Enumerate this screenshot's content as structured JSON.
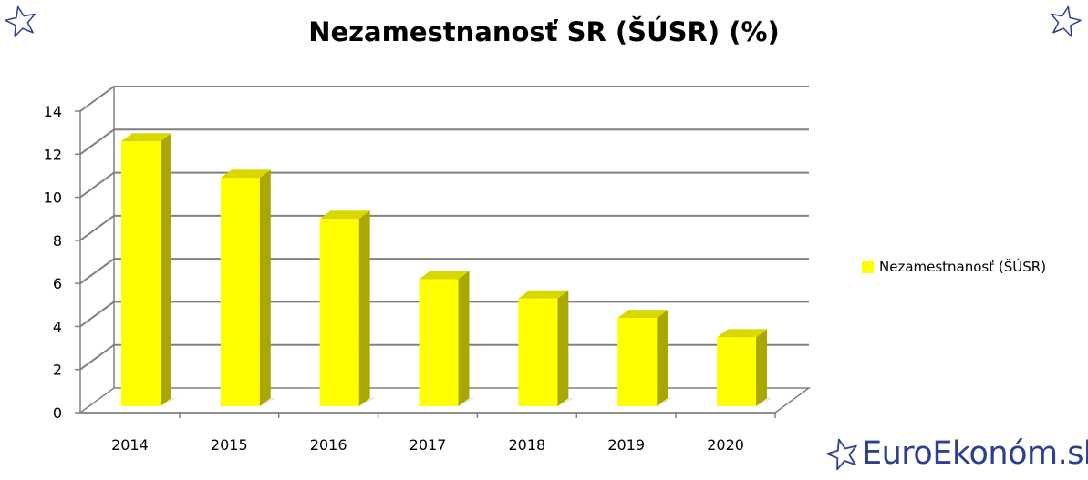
{
  "chart_data": {
    "type": "bar",
    "title": "Nezamestnanosť SR (ŠÚSR) (%)",
    "categories": [
      "2014",
      "2015",
      "2016",
      "2017",
      "2018",
      "2019",
      "2020"
    ],
    "series": [
      {
        "name": "Nezamestnanosť (ŠÚSR)",
        "values": [
          12.3,
          10.6,
          8.7,
          5.9,
          5.0,
          4.1,
          3.2
        ]
      }
    ],
    "ylim": [
      0,
      14
    ],
    "yticks": [
      "0",
      "2",
      "4",
      "6",
      "8",
      "10",
      "12",
      "14"
    ],
    "grid": true,
    "legend_position": "right",
    "colors": {
      "bar_front": "#ffff00",
      "bar_side": "#a8a800",
      "bar_top": "#d8d800",
      "grid": "#808080"
    }
  },
  "branding": {
    "site_name": "EuroEkonóm.sk",
    "brand_color": "#2e3f8f",
    "icon": "star-outline-icon"
  }
}
